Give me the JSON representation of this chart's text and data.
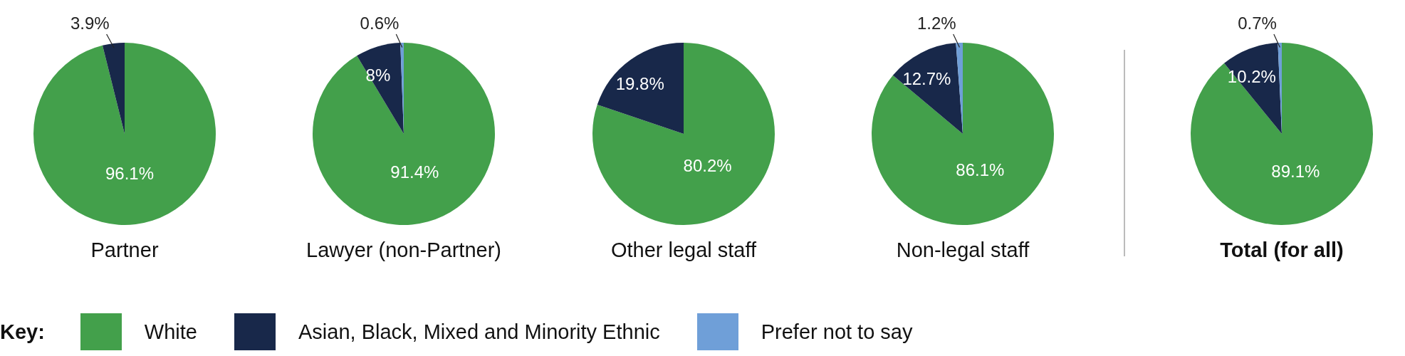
{
  "chart_data": [
    {
      "type": "pie",
      "title": "Partner",
      "categories": [
        "White",
        "Asian, Black, Mixed and Minority Ethnic",
        "Prefer not to say"
      ],
      "values": [
        96.1,
        3.9,
        null
      ],
      "colors": [
        "#43a04b",
        "#18284a",
        "#6f9fd8"
      ],
      "value_labels": [
        "96.1%",
        "3.9%",
        null
      ],
      "legend": "bottom",
      "legend_title": "Key:"
    },
    {
      "type": "pie",
      "title": "Lawyer (non-Partner)",
      "categories": [
        null,
        null,
        null
      ],
      "values": [
        91.4,
        8,
        0.6
      ],
      "colors": [
        "#43a04b",
        "#18284a",
        "#6f9fd8"
      ],
      "value_labels": [
        "91.4%",
        "8%",
        "0.6%"
      ]
    },
    {
      "type": "pie",
      "title": "Other legal staff",
      "categories": [
        null,
        null,
        null
      ],
      "values": [
        80.2,
        19.8,
        null
      ],
      "colors": [
        "#43a04b",
        "#18284a",
        "#6f9fd8"
      ],
      "value_labels": [
        "80.2%",
        "19.8%",
        null
      ]
    },
    {
      "type": "pie",
      "title": "Non-legal staff",
      "categories": [
        null,
        null,
        null
      ],
      "values": [
        86.1,
        12.7,
        1.2
      ],
      "colors": [
        "#43a04b",
        "#18284a",
        "#6f9fd8"
      ],
      "value_labels": [
        "86.1%",
        "12.7%",
        "1.2%"
      ]
    },
    {
      "type": "pie",
      "title": "Total (for all)",
      "categories": [
        null,
        null,
        null
      ],
      "values": [
        89.1,
        10.2,
        0.7
      ],
      "colors": [
        "#43a04b",
        "#18284a",
        "#6f9fd8"
      ],
      "value_labels": [
        "89.1%",
        "10.2%",
        "0.7%"
      ]
    }
  ]
}
